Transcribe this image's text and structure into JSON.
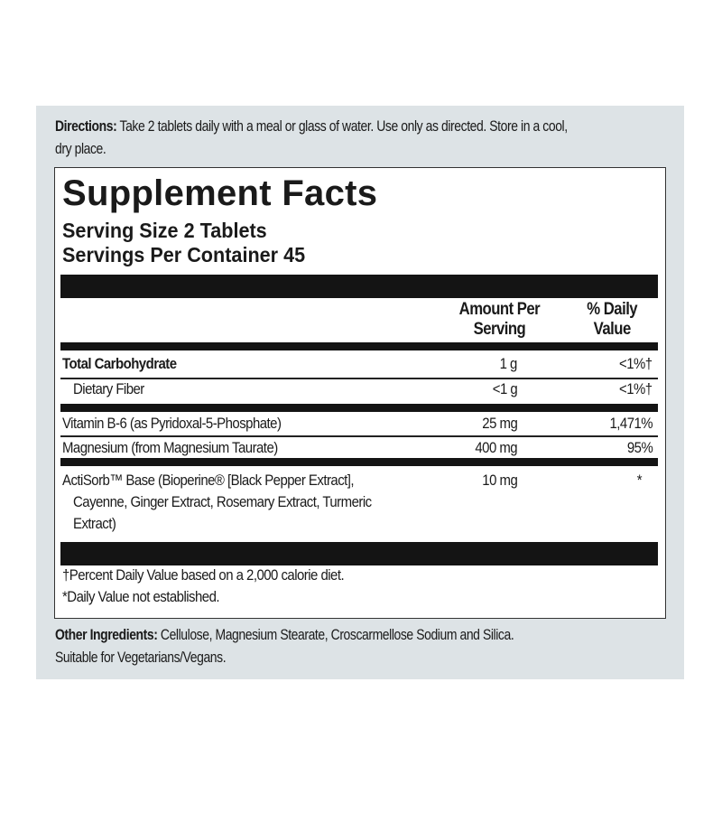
{
  "directions": {
    "label": "Directions:",
    "text": " Take 2 tablets daily with a meal or glass of water. Use only as directed. Store in a cool,",
    "text2": "dry place."
  },
  "facts": {
    "title": "Supplement Facts",
    "serving_size": "Serving Size 2 Tablets",
    "servings_per_container": "Servings Per Container 45",
    "col_amount": [
      "Amount Per",
      "Serving"
    ],
    "col_dv": [
      "% Daily",
      "Value"
    ],
    "rows": [
      {
        "name": "Total Carbohydrate",
        "amount": "1 g",
        "dv": "<1%†"
      },
      {
        "name": "Dietary Fiber",
        "amount": "<1 g",
        "dv": "<1%†"
      },
      {
        "name": "Vitamin B-6 (as Pyridoxal-5-Phosphate)",
        "amount": "25 mg",
        "dv": "1,471%"
      },
      {
        "name": "Magnesium (from Magnesium Taurate)",
        "amount": "400 mg",
        "dv": "95%"
      },
      {
        "name": [
          "ActiSorb™ Base (Bioperine® [Black Pepper Extract],",
          "Cayenne, Ginger Extract, Rosemary Extract, Turmeric",
          "Extract)"
        ],
        "amount": "10 mg",
        "dv": "*"
      }
    ],
    "footnotes": [
      "†Percent Daily Value based on a 2,000 calorie diet.",
      "*Daily Value not established."
    ]
  },
  "other": {
    "label": "Other Ingredients:",
    "text": " Cellulose, Magnesium Stearate, Croscarmellose Sodium and Silica.",
    "text2": "Suitable for Vegetarians/Vegans."
  },
  "colors": {
    "panel": "#dde3e6",
    "bars": "#141414"
  }
}
